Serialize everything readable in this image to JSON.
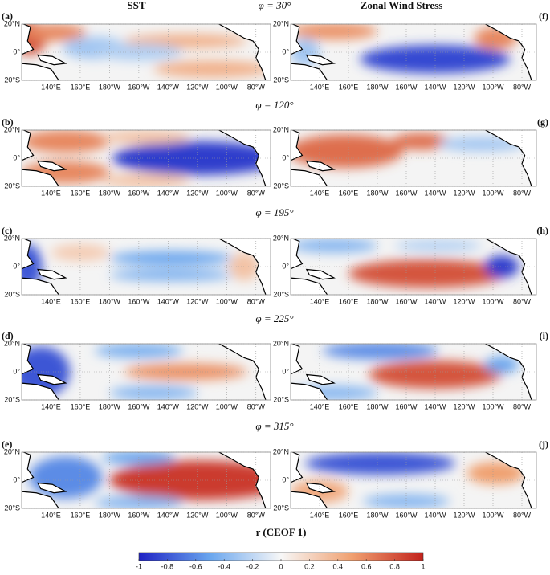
{
  "column_titles": [
    "SST",
    "Zonal Wind Stress"
  ],
  "phases": [
    "φ = 30°",
    "φ = 120°",
    "φ = 195°",
    "φ = 225°",
    "φ = 315°"
  ],
  "panel_labels": {
    "left": [
      "(a)",
      "(b)",
      "(c)",
      "(d)",
      "(e)"
    ],
    "right": [
      "(f)",
      "(g)",
      "(h)",
      "(i)",
      "(j)"
    ]
  },
  "map_axes": {
    "xlim": [
      120,
      290
    ],
    "ylim": [
      -20,
      20
    ],
    "xticks": [
      {
        "value": 140,
        "label": "140°E"
      },
      {
        "value": 160,
        "label": "160°E"
      },
      {
        "value": 180,
        "label": "180°W"
      },
      {
        "value": 200,
        "label": "160°W"
      },
      {
        "value": 220,
        "label": "140°W"
      },
      {
        "value": 240,
        "label": "120°W"
      },
      {
        "value": 260,
        "label": "100°W"
      },
      {
        "value": 280,
        "label": "80°W"
      }
    ],
    "yticks": [
      {
        "value": 20,
        "label": "20°N"
      },
      {
        "value": 0,
        "label": "0°"
      },
      {
        "value": -20,
        "label": "20°S"
      }
    ]
  },
  "colorbar": {
    "label": "r (CEOF 1)",
    "lim": [
      -1,
      1
    ],
    "ticks": [
      -1,
      -0.8,
      -0.6,
      -0.4,
      -0.2,
      0,
      0.2,
      0.4,
      0.6,
      0.8,
      1
    ],
    "colormap": [
      "#1f22c4",
      "#6aa6ee",
      "#f7f7f7",
      "#f0a070",
      "#c2221c"
    ]
  }
}
